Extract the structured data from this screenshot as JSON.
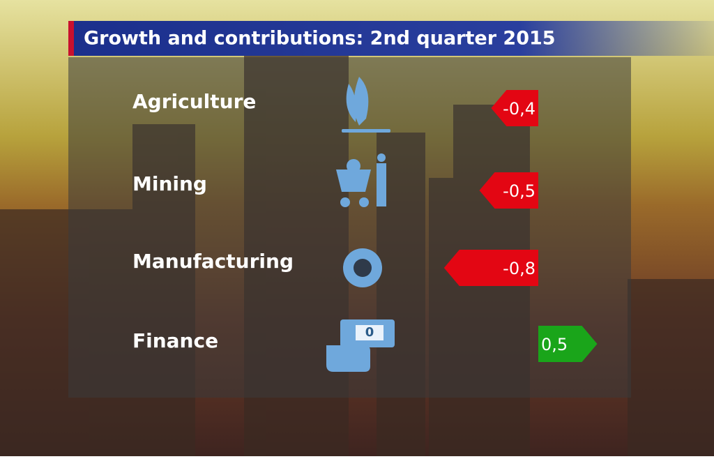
{
  "chart_data": {
    "type": "bar",
    "title": "Growth and contributions: 2nd quarter 2015",
    "categories": [
      "Agriculture",
      "Mining",
      "Manufacturing",
      "Finance"
    ],
    "values": [
      -0.4,
      -0.5,
      -0.8,
      0.5
    ],
    "value_labels": [
      "-0,4",
      "-0,5",
      "-0,8",
      "0,5"
    ],
    "negative_color": "#e30613",
    "positive_color": "#1aa51a"
  }
}
